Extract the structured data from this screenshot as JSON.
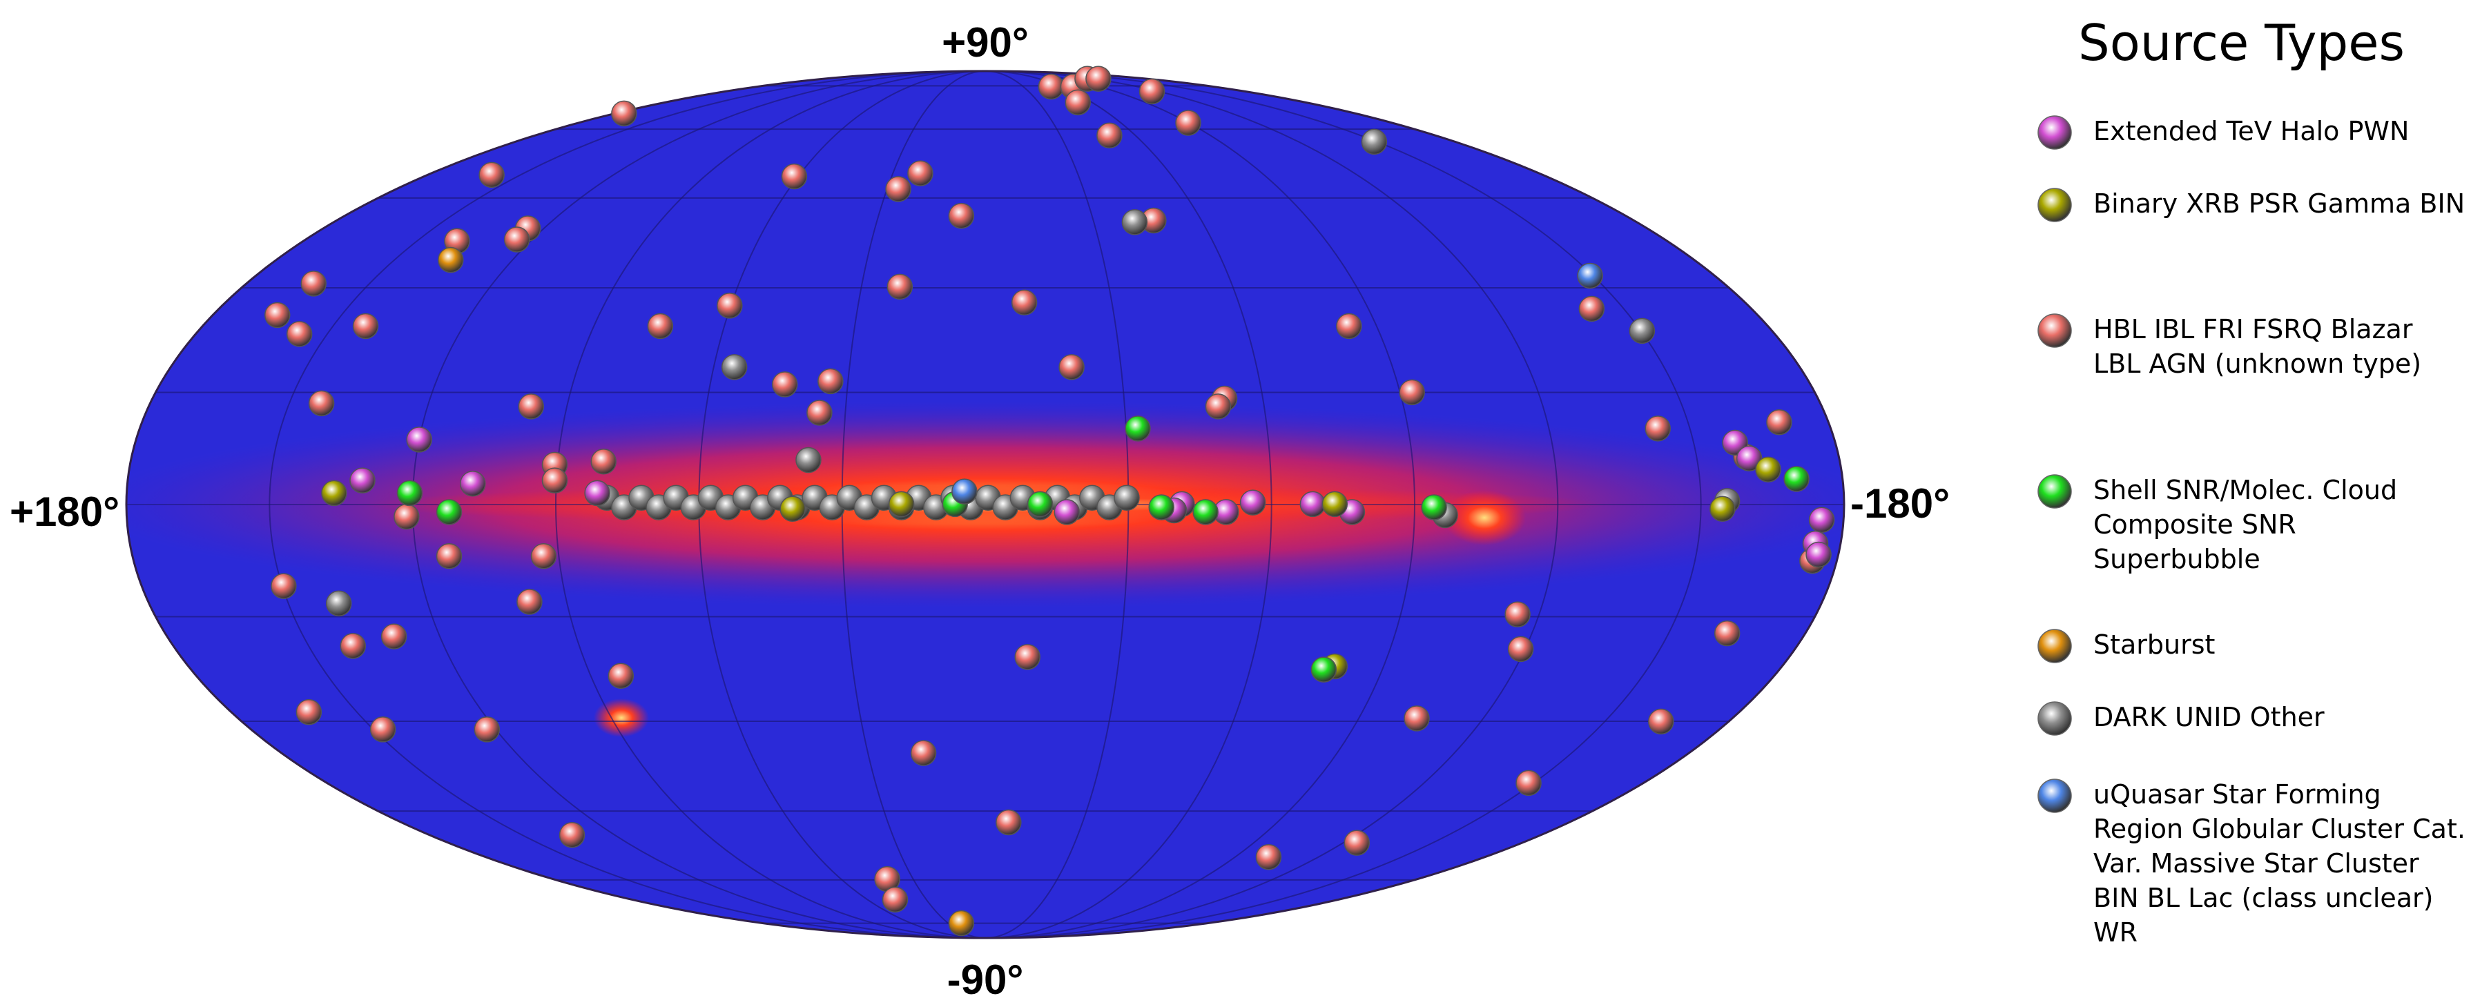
{
  "map": {
    "labels": {
      "top": "+90°",
      "bottom": "-90°",
      "left": "+180°",
      "right": "-180°"
    }
  },
  "legend": {
    "title": "Source Types",
    "entries": [
      {
        "label": "Extended TeV Halo PWN",
        "color": "#d24fd2"
      },
      {
        "label": "Binary XRB PSR Gamma BIN",
        "color": "#aaa800"
      },
      {
        "label": "HBL IBL FRI FSRQ Blazar LBL AGN (unknown type)",
        "color": "#ea6f68"
      },
      {
        "label": "Shell SNR/Molec. Cloud Composite SNR Superbubble",
        "color": "#1fe01f"
      },
      {
        "label": "Starburst",
        "color": "#e0900e"
      },
      {
        "label": "DARK UNID Other",
        "color": "#8e8e8e"
      },
      {
        "label": "uQuasar Star Forming Region Globular Cluster Cat. Var. Massive Star Cluster BIN BL Lac (class unclear) WR",
        "color": "#4f86e6"
      }
    ]
  }
}
